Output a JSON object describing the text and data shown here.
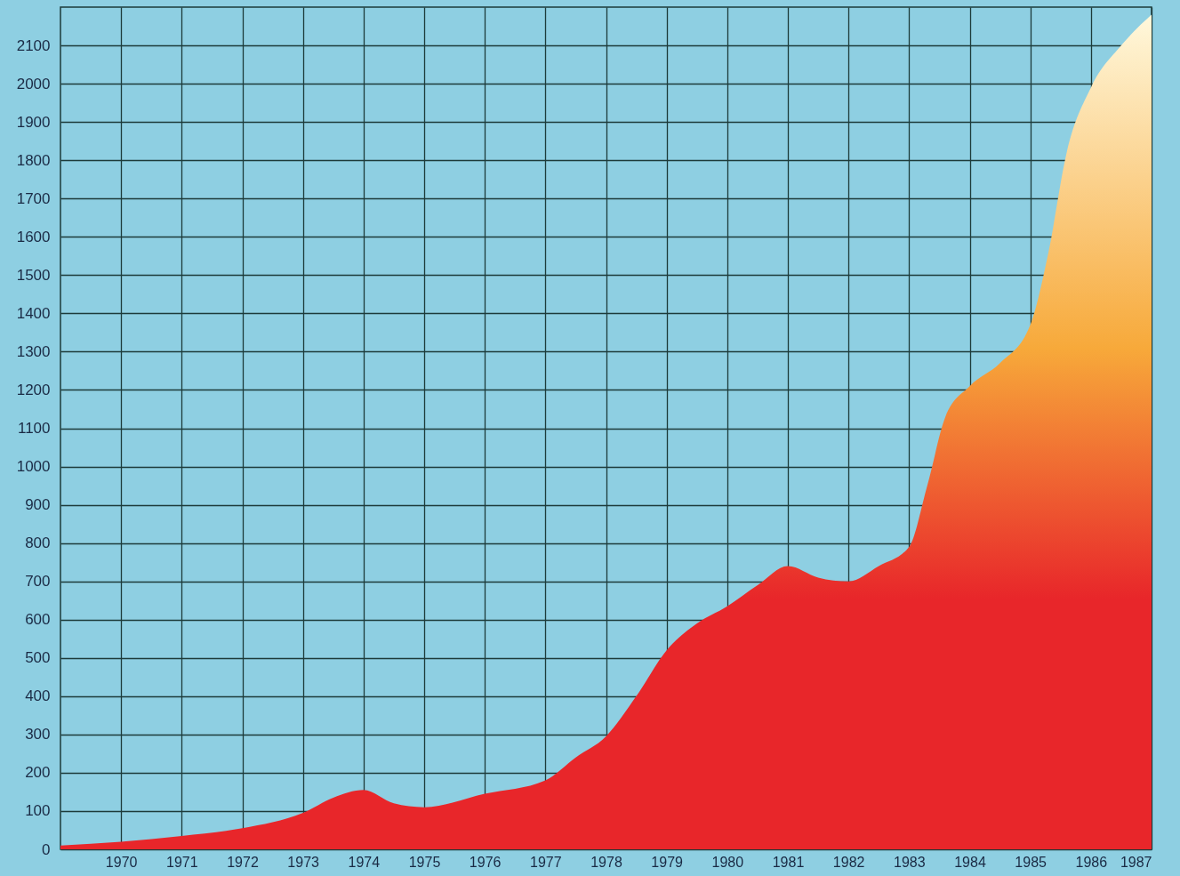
{
  "chart_data": {
    "type": "area",
    "x": [
      1969,
      1970,
      1971,
      1972,
      1973,
      1973.5,
      1974,
      1974.5,
      1975,
      1976,
      1977,
      1977.5,
      1978,
      1978.5,
      1979,
      1979.5,
      1980,
      1980.5,
      1981,
      1981.5,
      1982,
      1982.5,
      1983,
      1983.3,
      1983.6,
      1984,
      1984.5,
      1985,
      1985.3,
      1985.6,
      1986,
      1986.5,
      1987
    ],
    "series": [
      {
        "color": "#e8262a",
        "values": [
          10,
          20,
          35,
          55,
          95,
          135,
          155,
          120,
          110,
          145,
          180,
          240,
          295,
          400,
          520,
          590,
          635,
          690,
          740,
          710,
          700,
          740,
          790,
          950,
          1130,
          1210,
          1270,
          1370,
          1560,
          1820,
          1990,
          2100,
          2180
        ]
      }
    ],
    "xlim": [
      1969,
      1987
    ],
    "xticks": [
      1970,
      1971,
      1972,
      1973,
      1974,
      1975,
      1976,
      1977,
      1978,
      1979,
      1980,
      1981,
      1982,
      1983,
      1984,
      1985,
      1986,
      1987
    ],
    "ylim": [
      0,
      2200
    ],
    "yticks": [
      0,
      100,
      200,
      300,
      400,
      500,
      600,
      700,
      800,
      900,
      1000,
      1100,
      1200,
      1300,
      1400,
      1500,
      1600,
      1700,
      1800,
      1900,
      2000,
      2100
    ],
    "grid": true
  }
}
